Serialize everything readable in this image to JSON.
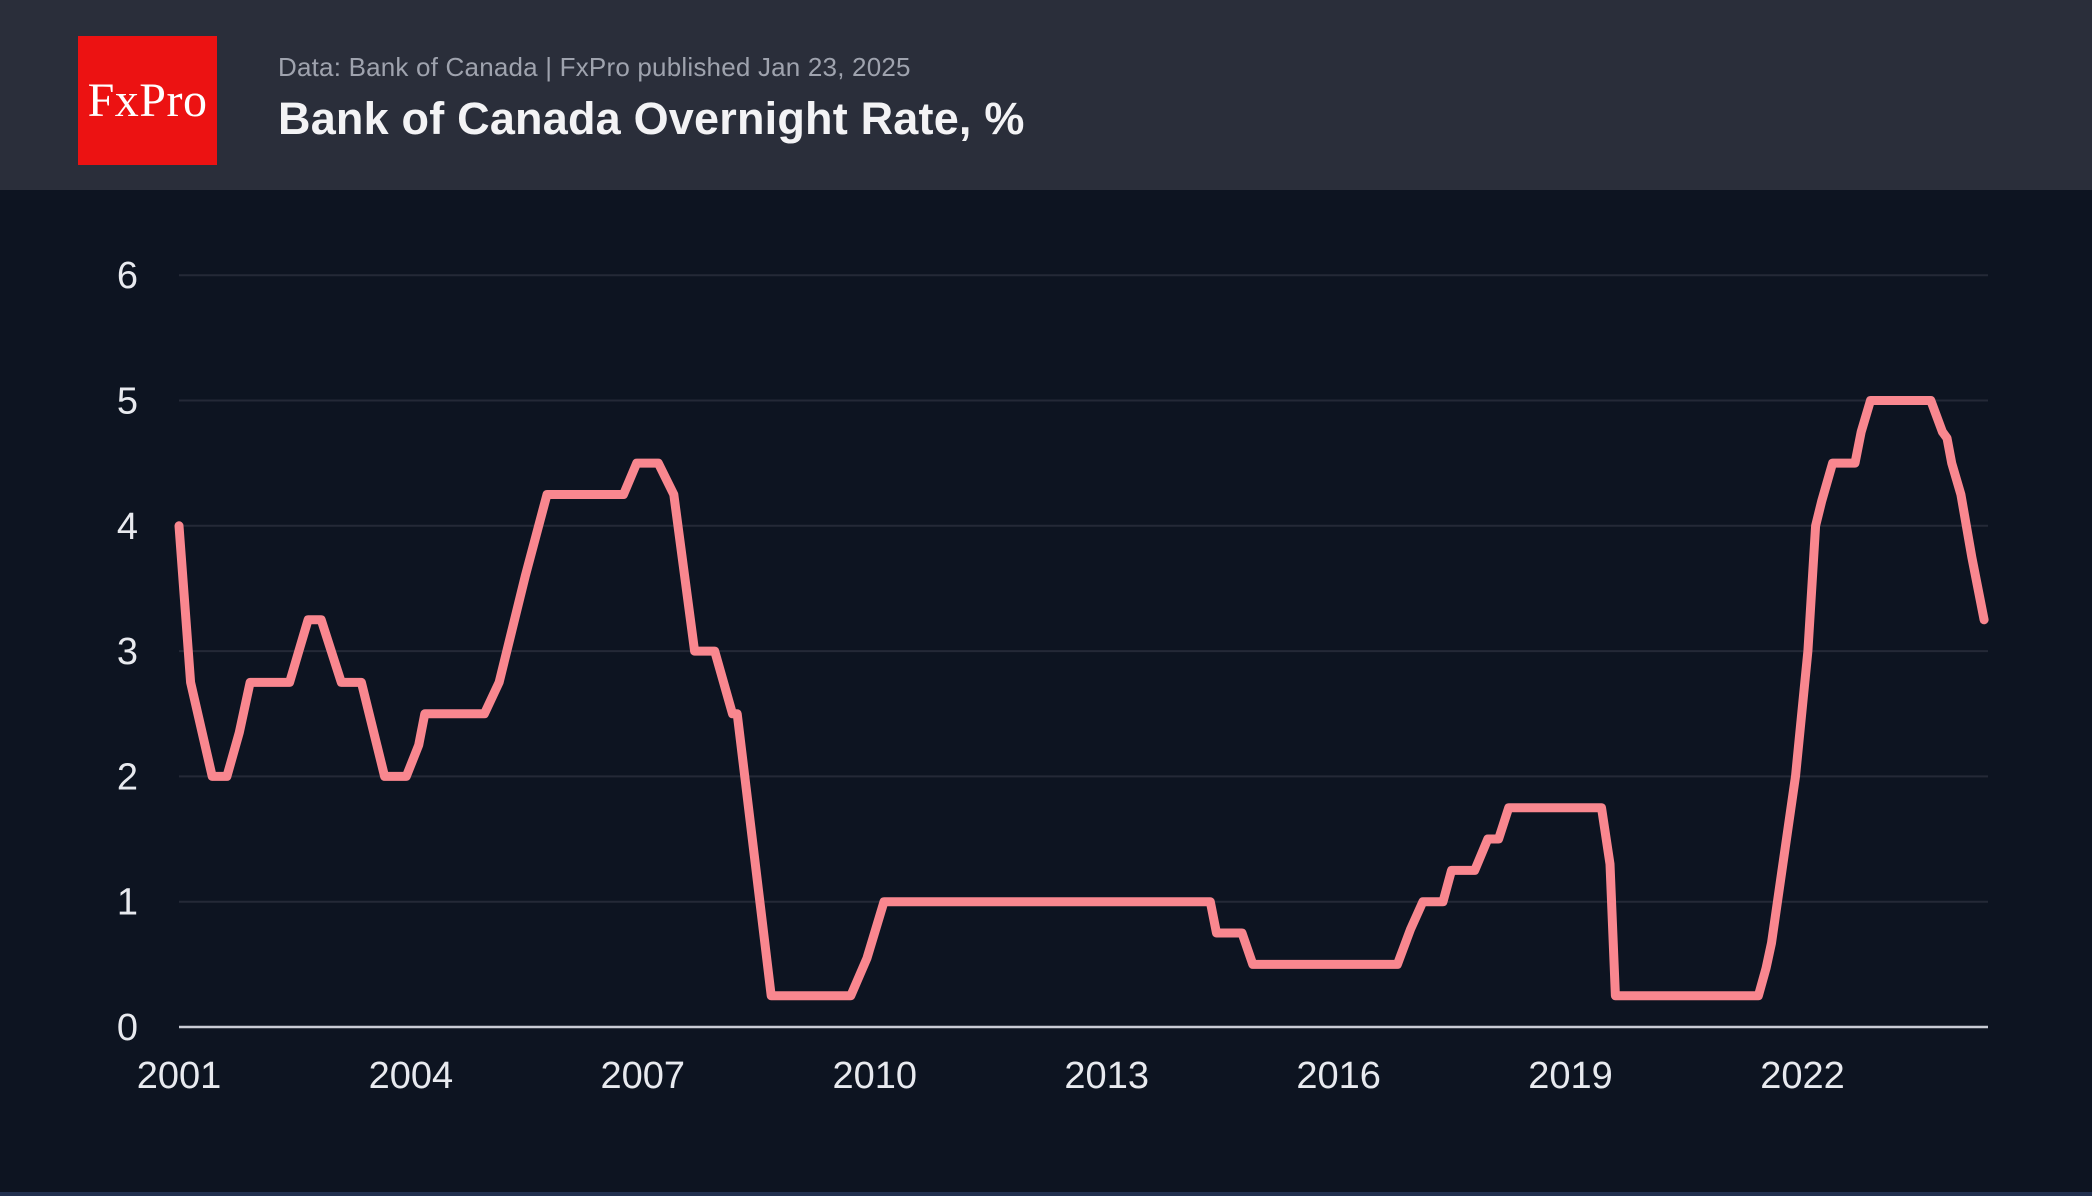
{
  "header": {
    "logo_text": "FxPro",
    "logo_color": "#EC1212",
    "subtitle": "Data: Bank of Canada  |  FxPro published Jan 23, 2025",
    "title": "Bank of Canada Overnight Rate, %"
  },
  "chart_data": {
    "type": "line",
    "title": "Bank of Canada Overnight Rate, %",
    "xlabel": "",
    "ylabel": "",
    "x_ticks": [
      "2001",
      "2004",
      "2007",
      "2010",
      "2013",
      "2016",
      "2019",
      "2022"
    ],
    "y_ticks": [
      "0",
      "1",
      "2",
      "3",
      "4",
      "5",
      "6"
    ],
    "x_range": [
      2001,
      2024.4
    ],
    "y_range": [
      0,
      6
    ],
    "grid": true,
    "legend_position": "none",
    "line_color": "#F9878F",
    "background_color": "#0D1421",
    "series": [
      {
        "name": "Bank of Canada overnight rate, %",
        "points": [
          [
            2001.0,
            4.0
          ],
          [
            2001.15,
            2.75
          ],
          [
            2001.43,
            2.0
          ],
          [
            2001.62,
            2.0
          ],
          [
            2001.78,
            2.35
          ],
          [
            2001.92,
            2.75
          ],
          [
            2002.43,
            2.75
          ],
          [
            2002.55,
            3.0
          ],
          [
            2002.67,
            3.25
          ],
          [
            2002.84,
            3.25
          ],
          [
            2003.1,
            2.75
          ],
          [
            2003.36,
            2.75
          ],
          [
            2003.66,
            2.0
          ],
          [
            2003.94,
            2.0
          ],
          [
            2004.1,
            2.25
          ],
          [
            2004.18,
            2.5
          ],
          [
            2004.95,
            2.5
          ],
          [
            2005.14,
            2.75
          ],
          [
            2005.48,
            3.6
          ],
          [
            2005.76,
            4.25
          ],
          [
            2006.75,
            4.25
          ],
          [
            2006.92,
            4.5
          ],
          [
            2007.2,
            4.5
          ],
          [
            2007.4,
            4.25
          ],
          [
            2007.67,
            3.0
          ],
          [
            2007.93,
            3.0
          ],
          [
            2008.16,
            2.5
          ],
          [
            2008.22,
            2.5
          ],
          [
            2008.66,
            0.25
          ],
          [
            2009.69,
            0.25
          ],
          [
            2009.9,
            0.55
          ],
          [
            2010.12,
            1.0
          ],
          [
            2014.34,
            1.0
          ],
          [
            2014.42,
            0.75
          ],
          [
            2014.75,
            0.75
          ],
          [
            2014.89,
            0.5
          ],
          [
            2016.76,
            0.5
          ],
          [
            2016.93,
            0.78
          ],
          [
            2017.09,
            1.0
          ],
          [
            2017.35,
            1.0
          ],
          [
            2017.46,
            1.25
          ],
          [
            2017.76,
            1.25
          ],
          [
            2017.93,
            1.5
          ],
          [
            2018.07,
            1.5
          ],
          [
            2018.2,
            1.75
          ],
          [
            2019.4,
            1.75
          ],
          [
            2019.51,
            1.3
          ],
          [
            2019.58,
            0.25
          ],
          [
            2021.43,
            0.25
          ],
          [
            2021.53,
            0.47
          ],
          [
            2021.6,
            0.67
          ],
          [
            2021.91,
            2.0
          ],
          [
            2022.07,
            3.0
          ],
          [
            2022.17,
            4.0
          ],
          [
            2022.25,
            4.2
          ],
          [
            2022.39,
            4.5
          ],
          [
            2022.68,
            4.5
          ],
          [
            2022.76,
            4.75
          ],
          [
            2022.88,
            5.0
          ],
          [
            2023.66,
            5.0
          ],
          [
            2023.81,
            4.75
          ],
          [
            2023.87,
            4.7
          ],
          [
            2023.93,
            4.5
          ],
          [
            2024.05,
            4.25
          ],
          [
            2024.19,
            3.75
          ],
          [
            2024.35,
            3.25
          ]
        ]
      }
    ]
  }
}
